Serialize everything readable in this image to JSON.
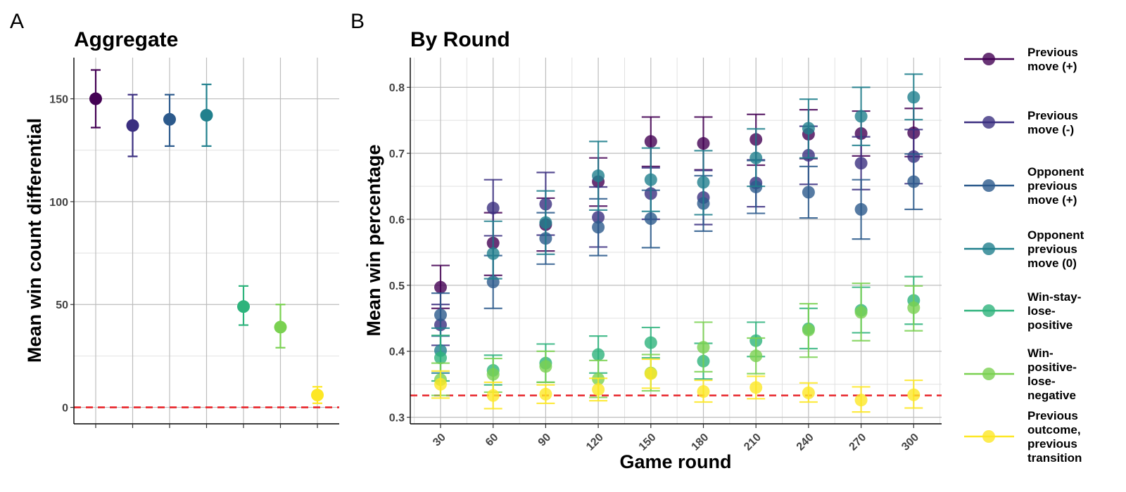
{
  "figure": {
    "panel_a_letter": "A",
    "panel_b_letter": "B"
  },
  "chart_data": [
    {
      "type": "scatter",
      "title": "Aggregate",
      "xlabel": "",
      "ylabel": "Mean win count differential",
      "ylim": [
        -8,
        170
      ],
      "yticks": [
        0,
        50,
        100,
        150
      ],
      "grid": true,
      "reference_line": {
        "y": 0,
        "color": "#e8262b",
        "style": "dashed"
      },
      "series": [
        {
          "name": "Previous move (+)",
          "color": "#440154",
          "value": 150,
          "lower": 136,
          "upper": 164
        },
        {
          "name": "Previous move (-)",
          "color": "#3b2f80",
          "value": 137,
          "lower": 122,
          "upper": 152
        },
        {
          "name": "Opponent previous move (+)",
          "color": "#2c5a8c",
          "value": 140,
          "lower": 127,
          "upper": 152
        },
        {
          "name": "Opponent previous move (0)",
          "color": "#21808d",
          "value": 142,
          "lower": 127,
          "upper": 157
        },
        {
          "name": "Win-stay-lose-positive",
          "color": "#2eb37c",
          "value": 49,
          "lower": 40,
          "upper": 59
        },
        {
          "name": "Win-positive-lose-negative",
          "color": "#7ad151",
          "value": 39,
          "lower": 29,
          "upper": 50
        },
        {
          "name": "Previous outcome, previous transition",
          "color": "#fde725",
          "value": 6,
          "lower": 2,
          "upper": 10
        }
      ]
    },
    {
      "type": "scatter",
      "title": "By Round",
      "xlabel": "Game round",
      "ylabel": "Mean win percentage",
      "x": [
        30,
        60,
        90,
        120,
        150,
        180,
        210,
        240,
        270,
        300
      ],
      "ylim": [
        0.29,
        0.845
      ],
      "yticks": [
        0.3,
        0.4,
        0.5,
        0.6,
        0.7,
        0.8
      ],
      "grid": true,
      "legend_position": "right",
      "reference_line": {
        "y": 0.333,
        "color": "#e8262b",
        "style": "dashed"
      },
      "series": [
        {
          "name": "Previous move (+)",
          "color": "#440154",
          "values": [
            0.497,
            0.564,
            0.592,
            0.657,
            0.718,
            0.715,
            0.721,
            0.729,
            0.73,
            0.731
          ],
          "lower": [
            0.465,
            0.515,
            0.552,
            0.62,
            0.68,
            0.675,
            0.682,
            0.692,
            0.696,
            0.695
          ],
          "upper": [
            0.53,
            0.61,
            0.632,
            0.693,
            0.755,
            0.755,
            0.759,
            0.766,
            0.764,
            0.768
          ]
        },
        {
          "name": "Previous move (-)",
          "color": "#3b2f80",
          "values": [
            0.44,
            0.617,
            0.623,
            0.603,
            0.639,
            0.633,
            0.655,
            0.697,
            0.685,
            0.695
          ],
          "lower": [
            0.409,
            0.575,
            0.576,
            0.558,
            0.6,
            0.592,
            0.619,
            0.653,
            0.645,
            0.654
          ],
          "upper": [
            0.471,
            0.66,
            0.671,
            0.649,
            0.678,
            0.674,
            0.69,
            0.741,
            0.725,
            0.736
          ]
        },
        {
          "name": "Opponent previous move (+)",
          "color": "#2c5a8c",
          "values": [
            0.455,
            0.505,
            0.571,
            0.588,
            0.601,
            0.624,
            0.649,
            0.641,
            0.615,
            0.657
          ],
          "lower": [
            0.423,
            0.465,
            0.532,
            0.545,
            0.557,
            0.582,
            0.609,
            0.602,
            0.57,
            0.615
          ],
          "upper": [
            0.488,
            0.545,
            0.61,
            0.631,
            0.644,
            0.666,
            0.689,
            0.68,
            0.66,
            0.699
          ]
        },
        {
          "name": "Opponent previous move (0)",
          "color": "#21808d",
          "values": [
            0.401,
            0.548,
            0.595,
            0.666,
            0.66,
            0.656,
            0.693,
            0.738,
            0.756,
            0.785
          ],
          "lower": [
            0.367,
            0.51,
            0.547,
            0.614,
            0.612,
            0.607,
            0.65,
            0.693,
            0.712,
            0.751
          ],
          "upper": [
            0.435,
            0.597,
            0.643,
            0.718,
            0.708,
            0.704,
            0.737,
            0.782,
            0.8,
            0.82
          ]
        },
        {
          "name": "Win-stay-lose-positive",
          "color": "#2eb37c",
          "values": [
            0.39,
            0.371,
            0.382,
            0.395,
            0.413,
            0.385,
            0.416,
            0.434,
            0.462,
            0.477
          ],
          "lower": [
            0.355,
            0.349,
            0.353,
            0.367,
            0.39,
            0.358,
            0.392,
            0.404,
            0.428,
            0.441
          ],
          "upper": [
            0.424,
            0.394,
            0.411,
            0.423,
            0.436,
            0.412,
            0.444,
            0.465,
            0.497,
            0.513
          ]
        },
        {
          "name": "Win-positive-lose-negative",
          "color": "#7ad151",
          "values": [
            0.357,
            0.365,
            0.377,
            0.358,
            0.367,
            0.406,
            0.393,
            0.432,
            0.459,
            0.466
          ],
          "lower": [
            0.333,
            0.338,
            0.353,
            0.33,
            0.34,
            0.369,
            0.366,
            0.391,
            0.416,
            0.431
          ],
          "upper": [
            0.382,
            0.389,
            0.4,
            0.386,
            0.395,
            0.444,
            0.42,
            0.472,
            0.503,
            0.499
          ]
        },
        {
          "name": "Previous outcome, previous transition",
          "color": "#fde725",
          "values": [
            0.35,
            0.333,
            0.335,
            0.342,
            0.366,
            0.339,
            0.345,
            0.337,
            0.326,
            0.334
          ],
          "lower": [
            0.329,
            0.313,
            0.321,
            0.325,
            0.344,
            0.323,
            0.328,
            0.323,
            0.308,
            0.314
          ],
          "upper": [
            0.37,
            0.353,
            0.349,
            0.359,
            0.388,
            0.356,
            0.362,
            0.352,
            0.346,
            0.356
          ]
        }
      ]
    }
  ],
  "legend": {
    "items": [
      {
        "color": "#440154",
        "lines": [
          "Previous",
          "move (+)"
        ]
      },
      {
        "color": "#3b2f80",
        "lines": [
          "Previous",
          "move (-)"
        ]
      },
      {
        "color": "#2c5a8c",
        "lines": [
          "Opponent",
          "previous",
          "move (+)"
        ]
      },
      {
        "color": "#21808d",
        "lines": [
          "Opponent",
          "previous",
          "move (0)"
        ]
      },
      {
        "color": "#2eb37c",
        "lines": [
          "Win-stay-",
          "lose-",
          "positive"
        ]
      },
      {
        "color": "#7ad151",
        "lines": [
          "Win-",
          "positive-",
          "lose-",
          "negative"
        ]
      },
      {
        "color": "#fde725",
        "lines": [
          "Previous",
          "outcome,",
          "previous",
          "transition"
        ]
      }
    ]
  }
}
